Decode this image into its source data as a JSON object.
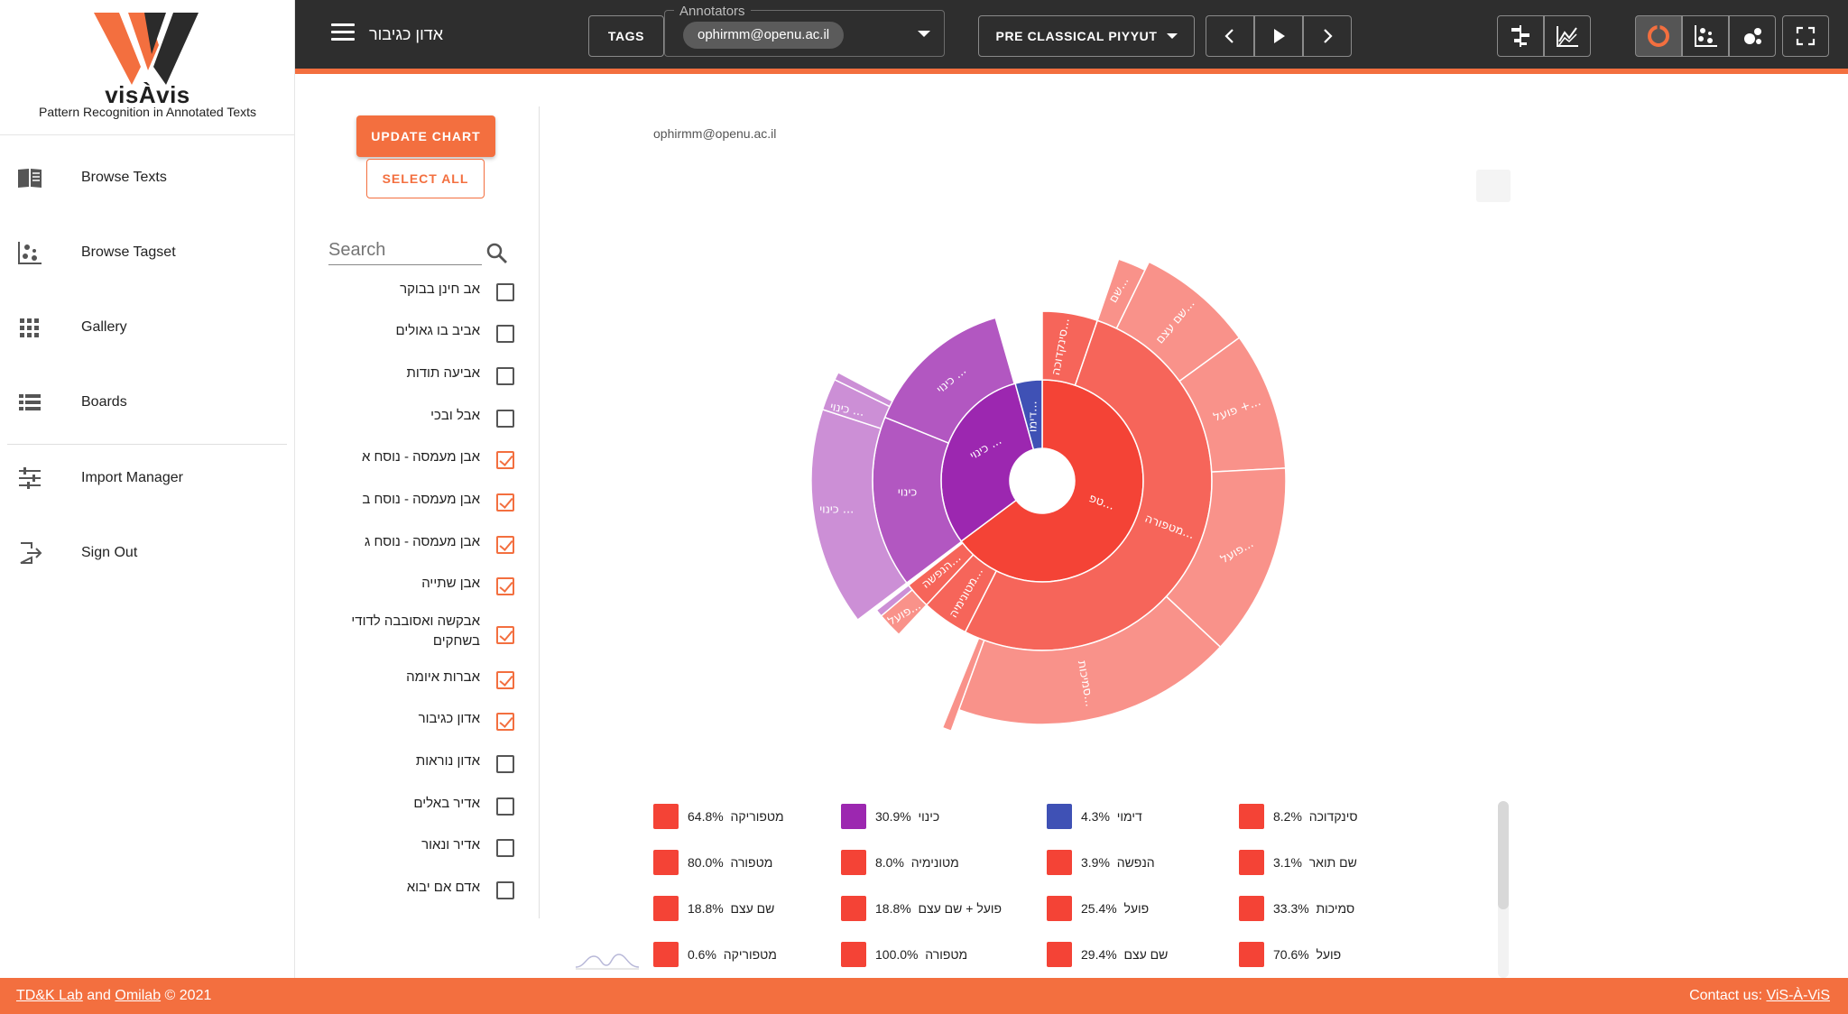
{
  "logo": {
    "name": "visÀvis",
    "subtitle": "Pattern Recognition in Annotated Texts"
  },
  "sidebar": {
    "items": [
      {
        "label": "Browse Texts",
        "icon": "book-icon"
      },
      {
        "label": "Browse Tagset",
        "icon": "scatter-icon"
      },
      {
        "label": "Gallery",
        "icon": "grid-icon"
      },
      {
        "label": "Boards",
        "icon": "list-icon"
      },
      {
        "label": "Import Manager",
        "icon": "sliders-icon"
      },
      {
        "label": "Sign Out",
        "icon": "logout-icon"
      }
    ]
  },
  "topbar": {
    "doc_title": "אדון כגיבור",
    "tags_label": "TAGS",
    "annotators_legend": "Annotators",
    "annotator_chip": "ophirmm@openu.ac.il",
    "corpus_label": "PRE CLASSICAL PIYYUT",
    "active_view": "sunburst"
  },
  "filters": {
    "update_label": "UPDATE CHART",
    "select_all_label": "SELECT ALL",
    "search_placeholder": "Search",
    "texts": [
      {
        "label": "אב חינן בבוקר",
        "checked": false
      },
      {
        "label": "אביב בו גאולים",
        "checked": false
      },
      {
        "label": "אביעה תודות",
        "checked": false
      },
      {
        "label": "אבל ובכי",
        "checked": false
      },
      {
        "label": "אבן מעמסה - נוסח א",
        "checked": true
      },
      {
        "label": "אבן מעמסה - נוסח ב",
        "checked": true
      },
      {
        "label": "אבן מעמסה - נוסח ג",
        "checked": true
      },
      {
        "label": "אבן שתייה",
        "checked": true
      },
      {
        "label": "אבקשה ואסובבה לדודי בשחקים",
        "checked": true
      },
      {
        "label": "אברות איומה",
        "checked": true
      },
      {
        "label": "אדון כגיבור",
        "checked": true
      },
      {
        "label": "אדון נוראות",
        "checked": false
      },
      {
        "label": "אדיר באלים",
        "checked": false
      },
      {
        "label": "אדיר ונאור",
        "checked": false
      },
      {
        "label": "אדם אם יבוא",
        "checked": false
      }
    ]
  },
  "chart": {
    "user_label": "ophirmm@openu.ac.il",
    "colors": {
      "red": "#f44336",
      "purple": "#9c27b0",
      "blue": "#3f51b5"
    },
    "segment_labels": {
      "inner_red": "טפ...",
      "inner_purple": "כינוי ...",
      "inner_blue": "דימו...",
      "mid_synecdoche": "סינקדוכה...",
      "mid_metaphor": "מטפורה...",
      "mid_metonymy": "מטונימיה...",
      "mid_personification": "הנפשה...",
      "mid_kinui_a": "כינוי",
      "mid_kinui_b": "כינוי ...",
      "outer_shem": "שם...",
      "outer_shem_etzem": "שם עצם...",
      "outer_poel_plus": "פועל +...",
      "outer_poel": "פועל...",
      "outer_smichut": "סמיכות...",
      "outer_kinui_1": "כינוי ...",
      "outer_kinui_2": "כינוי ...",
      "outer_kinui_3": "כינוי ...",
      "outer_poel_small": "פועל..."
    }
  },
  "chart_data": {
    "type": "sunburst",
    "legend": [
      {
        "label": "מטפוריקה",
        "value": "64.8%",
        "color": "#f44336"
      },
      {
        "label": "כינוי",
        "value": "30.9%",
        "color": "#9c27b0"
      },
      {
        "label": "דימוי",
        "value": "4.3%",
        "color": "#3f51b5"
      },
      {
        "label": "סינקדוכה",
        "value": "8.2%",
        "color": "#f44336"
      },
      {
        "label": "מטפורה",
        "value": "80.0%",
        "color": "#f44336"
      },
      {
        "label": "מטונימיה",
        "value": "8.0%",
        "color": "#f44336"
      },
      {
        "label": "הנפשה",
        "value": "3.9%",
        "color": "#f44336"
      },
      {
        "label": "שם תואר",
        "value": "3.1%",
        "color": "#f44336"
      },
      {
        "label": "שם עצם",
        "value": "18.8%",
        "color": "#f44336"
      },
      {
        "label": "פועל + שם עצם",
        "value": "18.8%",
        "color": "#f44336"
      },
      {
        "label": "פועל",
        "value": "25.4%",
        "color": "#f44336"
      },
      {
        "label": "סמיכות",
        "value": "33.3%",
        "color": "#f44336"
      },
      {
        "label": "מטפוריקה",
        "value": "0.6%",
        "color": "#f44336"
      },
      {
        "label": "מטפורה",
        "value": "100.0%",
        "color": "#f44336"
      },
      {
        "label": "שם עצם",
        "value": "29.4%",
        "color": "#f44336"
      },
      {
        "label": "פועל",
        "value": "70.6%",
        "color": "#f44336"
      }
    ],
    "rings": {
      "inner": [
        {
          "name": "מטפוריקה",
          "share": 64.8,
          "color": "#f44336"
        },
        {
          "name": "כינוי",
          "share": 30.9,
          "color": "#9c27b0"
        },
        {
          "name": "דימוי",
          "share": 4.3,
          "color": "#3f51b5"
        }
      ]
    }
  },
  "footer": {
    "lab": "TD&K Lab",
    "and": " and ",
    "omilab": "Omilab",
    "copyright": " © 2021",
    "contact_prefix": "Contact us: ",
    "contact_link": "ViS-À-ViS"
  }
}
